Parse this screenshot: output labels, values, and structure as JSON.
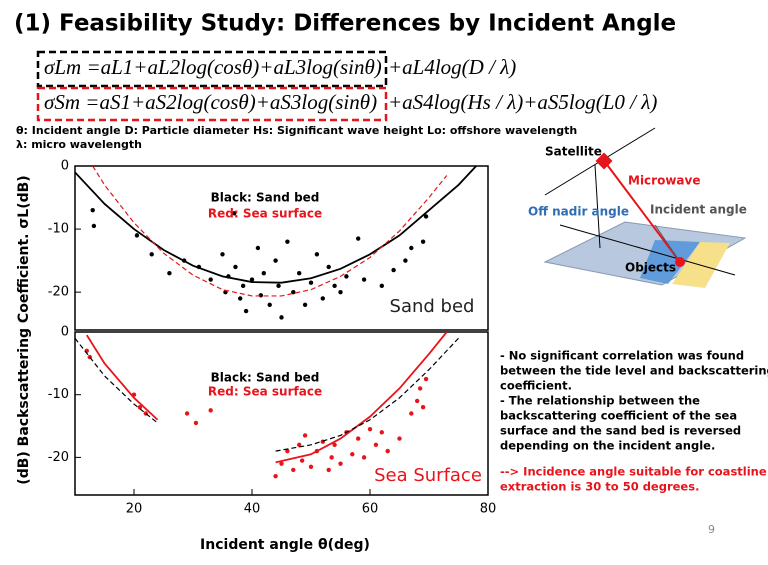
{
  "header": {
    "title": "(1) Feasibility Study: Differences by Incident Angle"
  },
  "equations": [
    {
      "boxed": "σLm =aL1+aL2log(cosθ)+aL3log(sinθ)",
      "rest": "+aL4log(D / λ)"
    },
    {
      "boxed": "σSm =aS1+aS2log(cosθ)+aS3log(sinθ)",
      "rest": "+aS4log(Hs / λ)+aS5log(L0 / λ)"
    }
  ],
  "definitions": [
    "θ: Incident angle D: Particle diameter Hs: Significant wave height Lo: offshore wavelength",
    "λ: micro wavelength"
  ],
  "chart_data": [
    {
      "type": "scatter",
      "ylabel": "(dB) Backscattering Coefficient.  σL(dB)",
      "xlim": [
        10,
        80
      ],
      "ylim": [
        -26,
        0
      ],
      "yticks": [
        0,
        -10,
        -20
      ],
      "annotations": [
        {
          "text": "Black: Sand bed",
          "color": "#000000"
        },
        {
          "text": "Red: Sea surface",
          "color": "#e8141b"
        },
        {
          "text": "Sand bed",
          "color": "#222222"
        }
      ],
      "series": [
        {
          "type": "scatter",
          "color": "#000000",
          "x": [
            13,
            13.2,
            20.5,
            23,
            26,
            28.5,
            31,
            33,
            35,
            35.5,
            36,
            37,
            37.2,
            38,
            38.5,
            39,
            40,
            41,
            41.5,
            42,
            43,
            44,
            44.5,
            45,
            46,
            47,
            48,
            49,
            50,
            51,
            52,
            53,
            54,
            55,
            56,
            58,
            59,
            62,
            64,
            66,
            67,
            69,
            69.5
          ],
          "values": [
            -7,
            -9.5,
            -11,
            -14,
            -17,
            -15,
            -16,
            -18,
            -14,
            -20,
            -17.5,
            -7.5,
            -16,
            -21,
            -19,
            -23,
            -18,
            -13,
            -20.5,
            -17,
            -22,
            -15,
            -19,
            -24,
            -12,
            -20,
            -17,
            -22,
            -18.5,
            -14,
            -21,
            -16,
            -19,
            -20,
            -17.5,
            -11.5,
            -18,
            -19,
            -16.5,
            -15,
            -13,
            -12,
            -8
          ]
        },
        {
          "type": "line",
          "color": "#000000",
          "dashed": false,
          "x": [
            10,
            15,
            20,
            25,
            30,
            35,
            40,
            45,
            50,
            55,
            60,
            65,
            70,
            75,
            78
          ],
          "values": [
            -1,
            -6,
            -10,
            -13.3,
            -15.8,
            -17.5,
            -18.4,
            -18.5,
            -17.8,
            -16.3,
            -14,
            -11,
            -7,
            -3,
            0
          ]
        },
        {
          "type": "line",
          "color": "#e8141b",
          "dashed": true,
          "x": [
            13,
            15,
            20,
            25,
            30,
            35,
            40,
            45,
            50,
            55,
            60,
            65,
            70,
            73
          ],
          "values": [
            0,
            -3,
            -9,
            -13.8,
            -17.3,
            -19.6,
            -20.6,
            -20.6,
            -19.6,
            -17.5,
            -14.5,
            -10.3,
            -5,
            -1.5
          ]
        }
      ]
    },
    {
      "type": "scatter",
      "xlabel": "Incident angle θ(deg)",
      "xlim": [
        10,
        80
      ],
      "xticks": [
        20,
        40,
        60,
        80
      ],
      "ylim": [
        -26,
        0
      ],
      "yticks": [
        0,
        -10,
        -20
      ],
      "annotations": [
        {
          "text": "Black: Sand bed",
          "color": "#000000"
        },
        {
          "text": "Red: Sea surface",
          "color": "#e8141b"
        },
        {
          "text": "Sea Surface",
          "color": "#e8141b"
        }
      ],
      "series": [
        {
          "type": "scatter",
          "color": "#e8141b",
          "x": [
            12,
            12.5,
            20,
            21,
            22,
            29,
            30.5,
            33,
            44,
            45,
            46,
            47,
            48,
            48.5,
            49,
            50,
            51,
            52,
            53,
            53.5,
            54,
            55,
            56,
            57,
            58,
            59,
            60,
            61,
            62,
            63,
            65,
            67,
            68,
            68.5,
            69,
            69.5
          ],
          "values": [
            -3,
            -4,
            -10,
            -12,
            -13,
            -13,
            -14.5,
            -12.5,
            -23,
            -21,
            -19,
            -22,
            -18,
            -20.5,
            -16.5,
            -21.5,
            -19,
            -17.5,
            -22,
            -20,
            -18,
            -21,
            -16,
            -19.5,
            -17,
            -20,
            -15.5,
            -18,
            -16,
            -19,
            -17,
            -13,
            -11,
            -9,
            -12,
            -7.5
          ]
        },
        {
          "type": "line",
          "color": "#e8141b",
          "dashed": false,
          "x": [
            12,
            15,
            20,
            24,
            34,
            44,
            50,
            55,
            60,
            65,
            70,
            73
          ],
          "values": [
            -0.5,
            -5,
            -10.5,
            -14,
            null,
            -20.8,
            -19.5,
            -17,
            -13.5,
            -9,
            -3.5,
            0
          ]
        },
        {
          "type": "line",
          "color": "#000000",
          "dashed": true,
          "x": [
            10,
            15,
            20,
            24,
            34,
            44,
            50,
            55,
            60,
            65,
            70,
            75
          ],
          "values": [
            -1,
            -7,
            -11.5,
            -14.5,
            null,
            -19,
            -18,
            -16.5,
            -14,
            -10.5,
            -6,
            -1
          ]
        }
      ]
    }
  ],
  "diagram": {
    "labels": [
      "Satellite",
      "Microwave",
      "Off nadir angle",
      "Incident angle",
      "Objects"
    ]
  },
  "notes": {
    "lines": [
      "- No significant correlation was found",
      "between the tide level and backscattering",
      "coefficient.",
      "- The relationship between the",
      "backscattering coefficient of the sea",
      "surface and the sand bed is reversed",
      "depending on the incident angle."
    ],
    "conclusion": [
      "--> Incidence angle suitable for coastline",
      "extraction is 30 to 50 degrees."
    ]
  },
  "page_number": "9"
}
